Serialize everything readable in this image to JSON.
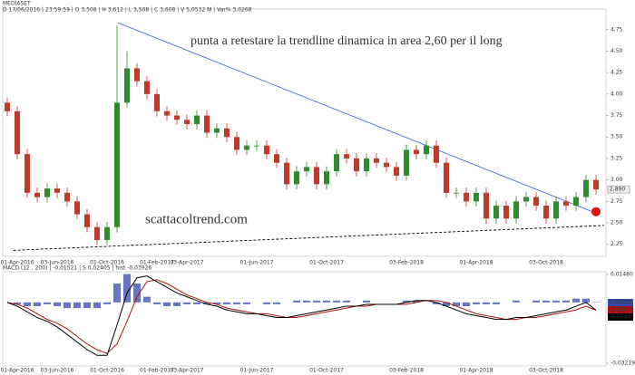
{
  "chart_data": [
    {
      "type": "candlestick",
      "symbol": "MEDIASET",
      "info": "D 17/06/2016 | 23:59:59 | O 3,508 | H 3,612 | L 3,508 | C 3,608 | V 5,0532 M | Var% 3,0268",
      "annotations": [
        {
          "text": "punta a retestare la trendline dinamica in area 2,60 per il long",
          "color": "#000000"
        },
        {
          "text": "scattacoltrend.com",
          "color": "#1a8a1a"
        }
      ],
      "categories": [
        null,
        "01-Apr-2016",
        null,
        null,
        null,
        "03-Jun-2016",
        null,
        null,
        null,
        null,
        "01-Oct-2016",
        null,
        null,
        null,
        null,
        "01-Feb-2017",
        null,
        null,
        "03-Apr-2017",
        null,
        null,
        null,
        null,
        null,
        null,
        "01-Jun-2017",
        null,
        null,
        null,
        null,
        null,
        null,
        "01-Oct-2017",
        null,
        null,
        null,
        null,
        null,
        null,
        null,
        "03-Feb-2018",
        null,
        null,
        null,
        null,
        null,
        null,
        "01-Apr-2018",
        null,
        null,
        null,
        null,
        null,
        null,
        "03-Oct-2018",
        null,
        null,
        null,
        null,
        null
      ],
      "open": [
        3.9,
        3.8,
        3.3,
        2.85,
        2.8,
        2.9,
        2.85,
        2.75,
        2.6,
        2.45,
        2.3,
        2.45,
        3.9,
        4.3,
        4.15,
        4.0,
        3.8,
        3.75,
        3.7,
        3.65,
        3.75,
        3.55,
        3.6,
        3.5,
        3.35,
        3.4,
        3.4,
        3.3,
        3.2,
        2.95,
        3.1,
        3.15,
        2.95,
        3.1,
        3.3,
        3.25,
        3.1,
        3.25,
        3.2,
        3.15,
        3.05,
        3.35,
        3.3,
        3.4,
        3.2,
        2.85,
        2.85,
        2.75,
        2.85,
        2.55,
        2.7,
        2.55,
        2.75,
        2.8,
        2.7,
        2.55,
        2.75,
        2.7,
        2.8,
        3.0
      ],
      "high": [
        3.96,
        3.86,
        3.36,
        2.91,
        2.96,
        2.96,
        2.91,
        2.81,
        2.66,
        2.51,
        2.51,
        4.8,
        4.5,
        4.36,
        4.21,
        4.06,
        3.86,
        3.81,
        3.76,
        3.81,
        3.81,
        3.66,
        3.66,
        3.56,
        3.46,
        3.46,
        3.46,
        3.36,
        3.26,
        3.16,
        3.21,
        3.21,
        3.16,
        3.36,
        3.36,
        3.31,
        3.31,
        3.31,
        3.26,
        3.21,
        3.41,
        3.41,
        3.46,
        3.46,
        3.26,
        2.91,
        2.91,
        2.91,
        2.91,
        2.76,
        2.76,
        2.81,
        2.86,
        2.86,
        2.76,
        2.81,
        2.81,
        2.86,
        3.06,
        3.06
      ],
      "low": [
        3.74,
        3.24,
        2.79,
        2.74,
        2.74,
        2.79,
        2.69,
        2.54,
        2.39,
        2.24,
        2.24,
        2.39,
        3.84,
        4.09,
        3.94,
        3.74,
        3.69,
        3.64,
        3.59,
        3.59,
        3.49,
        3.49,
        3.44,
        3.29,
        3.29,
        3.34,
        3.24,
        3.14,
        2.89,
        2.89,
        3.04,
        2.89,
        2.89,
        3.04,
        3.19,
        3.04,
        3.04,
        3.14,
        3.09,
        2.99,
        2.99,
        3.24,
        3.24,
        3.14,
        2.79,
        2.79,
        2.69,
        2.69,
        2.49,
        2.49,
        2.49,
        2.49,
        2.69,
        2.64,
        2.49,
        2.49,
        2.64,
        2.64,
        2.74,
        2.83
      ],
      "close": [
        3.8,
        3.3,
        2.85,
        2.8,
        2.9,
        2.85,
        2.75,
        2.6,
        2.45,
        2.3,
        2.45,
        3.9,
        4.3,
        4.15,
        4.0,
        3.8,
        3.75,
        3.7,
        3.65,
        3.75,
        3.55,
        3.6,
        3.5,
        3.35,
        3.4,
        3.4,
        3.3,
        3.2,
        2.95,
        3.1,
        3.15,
        2.95,
        3.1,
        3.3,
        3.25,
        3.1,
        3.25,
        3.2,
        3.15,
        3.05,
        3.35,
        3.3,
        3.4,
        3.2,
        2.85,
        2.85,
        2.75,
        2.85,
        2.55,
        2.7,
        2.55,
        2.75,
        2.8,
        2.7,
        2.55,
        2.75,
        2.7,
        2.8,
        3.0,
        2.89
      ],
      "last_label": "2,890",
      "up_color": "#2e8b2e",
      "down_color": "#c0392b",
      "ylim": [
        2.11,
        4.99
      ],
      "yticks": [
        {
          "value": 2.25,
          "label": "2.25"
        },
        {
          "value": 2.5,
          "label": "2.50"
        },
        {
          "value": 2.75,
          "label": "2.75"
        },
        {
          "value": 3,
          "label": "3.00"
        },
        {
          "value": 3.25,
          "label": "3.25"
        },
        {
          "value": 3.5,
          "label": "3.50"
        },
        {
          "value": 3.75,
          "label": "3.75"
        },
        {
          "value": 4,
          "label": "4.00"
        },
        {
          "value": 4.25,
          "label": "4.25"
        },
        {
          "value": 4.5,
          "label": "4.50"
        },
        {
          "value": 4.75,
          "label": "4.75"
        }
      ],
      "lines": [
        {
          "color": "#4a6fd0",
          "dashed": false,
          "x": [
            11.1,
            59.3
          ],
          "y": [
            4.83,
            2.6
          ]
        },
        {
          "color": "#000000",
          "dashed": true,
          "x": [
            0.6,
            59.8
          ],
          "y": [
            2.18,
            2.47
          ]
        }
      ],
      "marker": {
        "x": 59,
        "y": 2.63,
        "color": "#e01010"
      }
    },
    {
      "type": "macd",
      "title": "MACD (12 , 200) | -0,01521 | S 0,02405 | hist -0,03926",
      "categories": [
        null,
        "01-Apr-2016",
        null,
        null,
        null,
        "03-Jun-2016",
        null,
        null,
        null,
        null,
        "01-Oct-2016",
        null,
        null,
        null,
        null,
        "01-Feb-2017",
        null,
        null,
        "03-Apr-2017",
        null,
        null,
        null,
        null,
        null,
        null,
        "01-Jun-2017",
        null,
        null,
        null,
        null,
        null,
        null,
        "01-Oct-2017",
        null,
        null,
        null,
        null,
        null,
        null,
        null,
        "03-Feb-2018",
        null,
        null,
        null,
        null,
        null,
        null,
        "01-Apr-2018",
        null,
        null,
        null,
        null,
        null,
        null,
        "03-Oct-2018",
        null,
        null,
        null,
        null,
        null
      ],
      "ylim": [
        -0.03219,
        0.0148
      ],
      "yticks": [
        {
          "value": -0.03219,
          "label": "-0,03219"
        },
        {
          "value": 0.0148,
          "label": "0,01480"
        }
      ],
      "series": [
        {
          "name": "hist",
          "kind": "bar",
          "color": "#3348b0",
          "last_label": "0,00021",
          "values": [
            0,
            -0.001,
            -0.002,
            -0.002,
            -0.001,
            -0.002,
            -0.003,
            -0.003,
            -0.003,
            -0.003,
            -0.001,
            0.01,
            0.015,
            0.01,
            0.003,
            -0.001,
            -0.002,
            -0.002,
            -0.001,
            -0.001,
            -0.001,
            -0.001,
            -0.001,
            -0.001,
            -0.001,
            0,
            -0.001,
            -0.001,
            0,
            0.001,
            0.001,
            0.001,
            0.001,
            0.001,
            0.001,
            0,
            0.001,
            0,
            0,
            0,
            0.001,
            0.001,
            0,
            -0.001,
            -0.002,
            -0.002,
            -0.002,
            -0.001,
            -0.001,
            -0.001,
            0,
            0.001,
            0,
            0.001,
            0.001,
            0.001,
            0.001,
            0.002,
            0.002,
            0.00021
          ]
        },
        {
          "name": "signal",
          "kind": "line",
          "color": "#b01010",
          "last_label": "-0,00415",
          "values": [
            0,
            -0.001,
            -0.003,
            -0.006,
            -0.009,
            -0.011,
            -0.014,
            -0.018,
            -0.022,
            -0.025,
            -0.027,
            -0.022,
            -0.01,
            0.003,
            0.011,
            0.012,
            0.01,
            0.007,
            0.004,
            0.002,
            0,
            -0.001,
            -0.003,
            -0.004,
            -0.005,
            -0.006,
            -0.006,
            -0.007,
            -0.008,
            -0.008,
            -0.007,
            -0.006,
            -0.005,
            -0.004,
            -0.003,
            -0.002,
            -0.002,
            -0.001,
            -0.001,
            -0.001,
            -0.001,
            0,
            0.001,
            0.001,
            0,
            -0.002,
            -0.004,
            -0.006,
            -0.007,
            -0.008,
            -0.009,
            -0.009,
            -0.008,
            -0.008,
            -0.007,
            -0.006,
            -0.005,
            -0.004,
            -0.002,
            -0.00415
          ]
        },
        {
          "name": "macd",
          "kind": "line",
          "color": "#000000",
          "last_label": "-0,00405",
          "values": [
            0,
            -0.002,
            -0.005,
            -0.008,
            -0.01,
            -0.013,
            -0.017,
            -0.021,
            -0.025,
            -0.028,
            -0.028,
            -0.012,
            0.005,
            0.013,
            0.014,
            0.011,
            0.008,
            0.005,
            0.003,
            0.001,
            -0.001,
            -0.002,
            -0.004,
            -0.005,
            -0.006,
            -0.006,
            -0.007,
            -0.008,
            -0.008,
            -0.007,
            -0.006,
            -0.005,
            -0.004,
            -0.003,
            -0.002,
            -0.002,
            -0.001,
            -0.001,
            -0.001,
            -0.001,
            0,
            0.001,
            0.001,
            0,
            -0.002,
            -0.004,
            -0.006,
            -0.007,
            -0.008,
            -0.009,
            -0.009,
            -0.008,
            -0.008,
            -0.007,
            -0.006,
            -0.005,
            -0.004,
            -0.002,
            0,
            -0.00405
          ]
        }
      ]
    }
  ]
}
